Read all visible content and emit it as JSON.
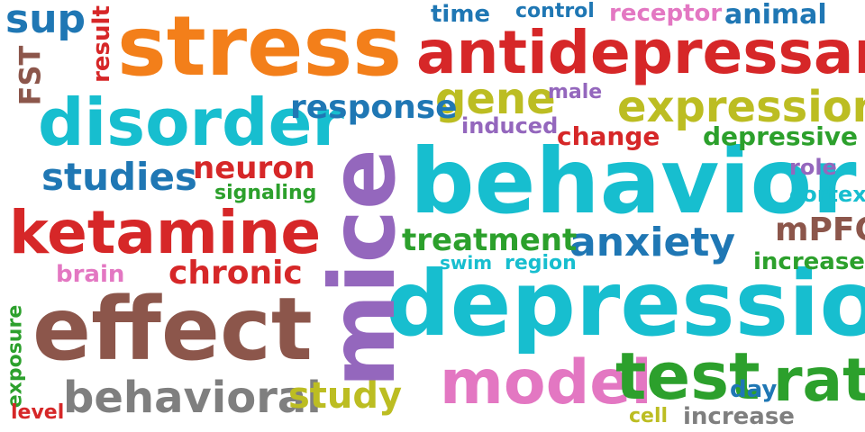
{
  "words": [
    {
      "text": "stress",
      "color": "#f37f1a"
    },
    {
      "text": "antidepressant",
      "color": "#d62728"
    },
    {
      "text": "disorder",
      "color": "#17becf"
    },
    {
      "text": "behavior",
      "color": "#17becf"
    },
    {
      "text": "depression",
      "color": "#17becf"
    },
    {
      "text": "mice",
      "color": "#9467bd"
    },
    {
      "text": "effect",
      "color": "#8c564b"
    },
    {
      "text": "ketamine",
      "color": "#d62728"
    },
    {
      "text": "expression",
      "color": "#bcbd22"
    },
    {
      "text": "gene",
      "color": "#bcbd22"
    },
    {
      "text": "model",
      "color": "#e377c2"
    },
    {
      "text": "test",
      "color": "#2ca02c"
    },
    {
      "text": "rat",
      "color": "#2ca02c"
    },
    {
      "text": "behavioral",
      "color": "#7f7f7f"
    },
    {
      "text": "studies",
      "color": "#1f77b4"
    },
    {
      "text": "response",
      "color": "#1f77b4"
    },
    {
      "text": "anxiety",
      "color": "#1f77b4"
    },
    {
      "text": "treatment",
      "color": "#2ca02c"
    },
    {
      "text": "neuron",
      "color": "#d62728"
    },
    {
      "text": "chronic",
      "color": "#d62728"
    },
    {
      "text": "study",
      "color": "#bcbd22"
    },
    {
      "text": "sup",
      "color": "#1f77b4"
    },
    {
      "text": "result",
      "color": "#d62728"
    },
    {
      "text": "FST",
      "color": "#8c564b"
    },
    {
      "text": "time",
      "color": "#1f77b4"
    },
    {
      "text": "control",
      "color": "#1f77b4"
    },
    {
      "text": "receptor",
      "color": "#e377c2"
    },
    {
      "text": "animal",
      "color": "#1f77b4"
    },
    {
      "text": "male",
      "color": "#9467bd"
    },
    {
      "text": "induced",
      "color": "#9467bd"
    },
    {
      "text": "change",
      "color": "#d62728"
    },
    {
      "text": "depressive",
      "color": "#2ca02c"
    },
    {
      "text": "role",
      "color": "#9467bd"
    },
    {
      "text": "cortex",
      "color": "#17becf"
    },
    {
      "text": "signaling",
      "color": "#2ca02c"
    },
    {
      "text": "mPFC",
      "color": "#8c564b"
    },
    {
      "text": "brain",
      "color": "#e377c2"
    },
    {
      "text": "swim",
      "color": "#17becf"
    },
    {
      "text": "region",
      "color": "#17becf"
    },
    {
      "text": "increased",
      "color": "#2ca02c"
    },
    {
      "text": "exposure",
      "color": "#2ca02c"
    },
    {
      "text": "level",
      "color": "#d62728"
    },
    {
      "text": "day",
      "color": "#1f77b4"
    },
    {
      "text": "cell",
      "color": "#bcbd22"
    },
    {
      "text": "increase",
      "color": "#7f7f7f"
    }
  ]
}
